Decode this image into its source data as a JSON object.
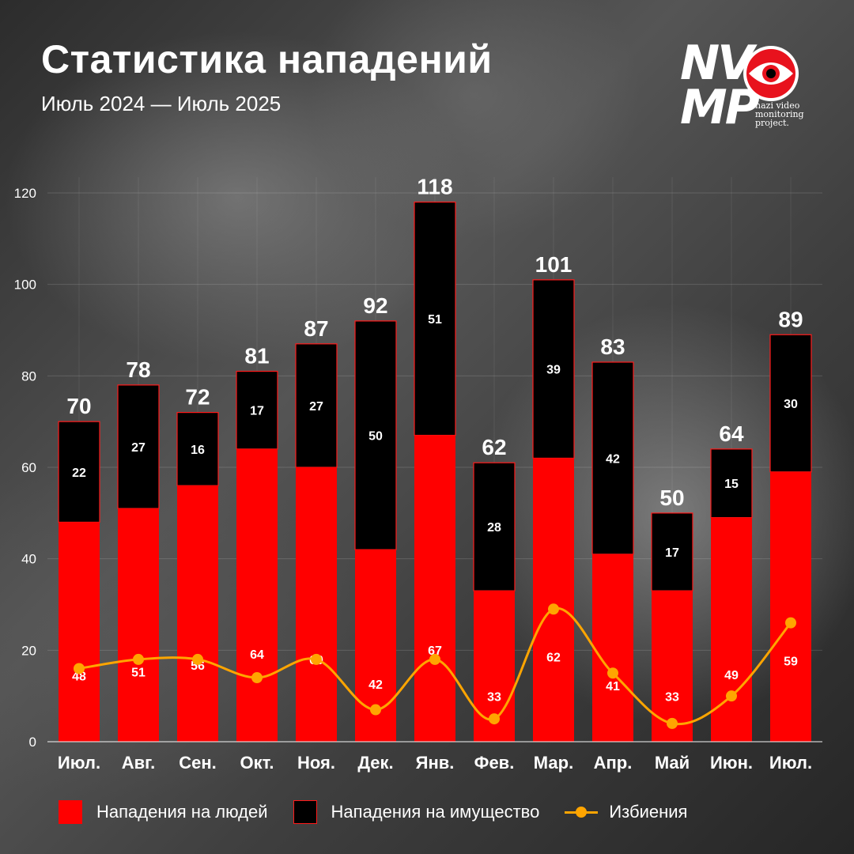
{
  "title": "Статистика нападений",
  "subtitle": "Июль 2024 — Июль 2025",
  "logo": {
    "mark_top": "NV",
    "mark_bottom": "MP",
    "tagline": [
      "nazi video",
      "monitoring",
      "project."
    ]
  },
  "chart_data": {
    "type": "bar",
    "stacked": true,
    "categories": [
      "Июл.",
      "Авг.",
      "Сен.",
      "Окт.",
      "Ноя.",
      "Дек.",
      "Янв.",
      "Фев.",
      "Мар.",
      "Апр.",
      "Май",
      "Июн.",
      "Июл."
    ],
    "series": [
      {
        "name": "Нападения на людей",
        "type": "bar",
        "color": "#ff0000",
        "values": [
          48,
          51,
          56,
          64,
          60,
          42,
          67,
          33,
          62,
          41,
          33,
          49,
          59
        ]
      },
      {
        "name": "Нападения на имущество",
        "type": "bar",
        "color": "#000000",
        "values": [
          22,
          27,
          16,
          17,
          27,
          50,
          51,
          28,
          39,
          42,
          17,
          15,
          30
        ]
      },
      {
        "name": "Избиения",
        "type": "line",
        "color": "#ffa500",
        "values": [
          16,
          18,
          18,
          14,
          18,
          7,
          18,
          5,
          29,
          15,
          4,
          10,
          26
        ]
      }
    ],
    "totals": [
      70,
      78,
      72,
      81,
      87,
      92,
      118,
      62,
      101,
      83,
      50,
      64,
      89
    ],
    "ylim": [
      0,
      120
    ],
    "yticks": [
      0,
      20,
      40,
      60,
      80,
      100,
      120
    ],
    "grid": true,
    "legend_position": "bottom"
  }
}
